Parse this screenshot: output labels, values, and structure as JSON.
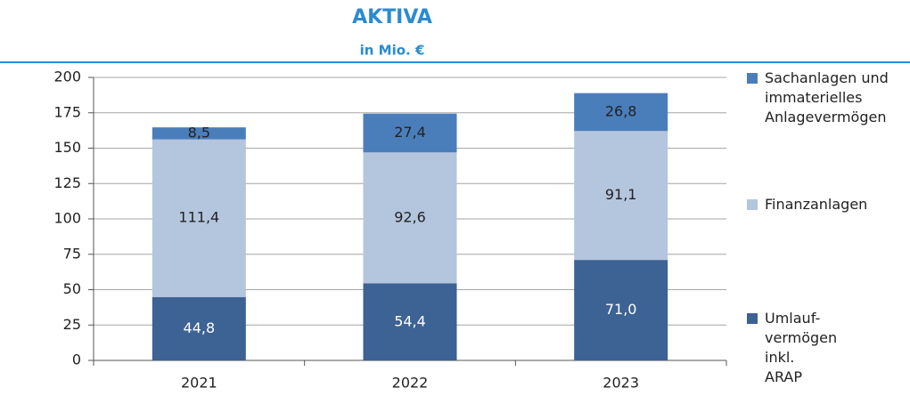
{
  "chart_data": {
    "type": "stacked_bar",
    "title": "AKTIVA",
    "subtitle": "in Mio. €",
    "categories": [
      "2021",
      "2022",
      "2023"
    ],
    "series": [
      {
        "name": "Umlauf- vermögen inkl. ARAP",
        "color": "#3d6294",
        "label_color": "#ffffff",
        "values": [
          44.8,
          54.4,
          71.0
        ],
        "value_labels": [
          "44,8",
          "54,4",
          "71,0"
        ]
      },
      {
        "name": "Finanzanlagen",
        "color": "#b4c5de",
        "label_color": "#222222",
        "values": [
          111.4,
          92.6,
          91.1
        ],
        "value_labels": [
          "111,4",
          "92,6",
          "91,1"
        ]
      },
      {
        "name": "Sachanlagen und immaterielles Anlagevermögen",
        "color": "#4a7ebb",
        "label_color": "#222222",
        "values": [
          8.5,
          27.4,
          26.8
        ],
        "value_labels": [
          "8,5",
          "27,4",
          "26,8"
        ]
      }
    ],
    "ylim": [
      0,
      200
    ],
    "yticks": [
      0,
      25,
      50,
      75,
      100,
      125,
      150,
      175,
      200
    ],
    "grid": true,
    "legend": "right"
  }
}
